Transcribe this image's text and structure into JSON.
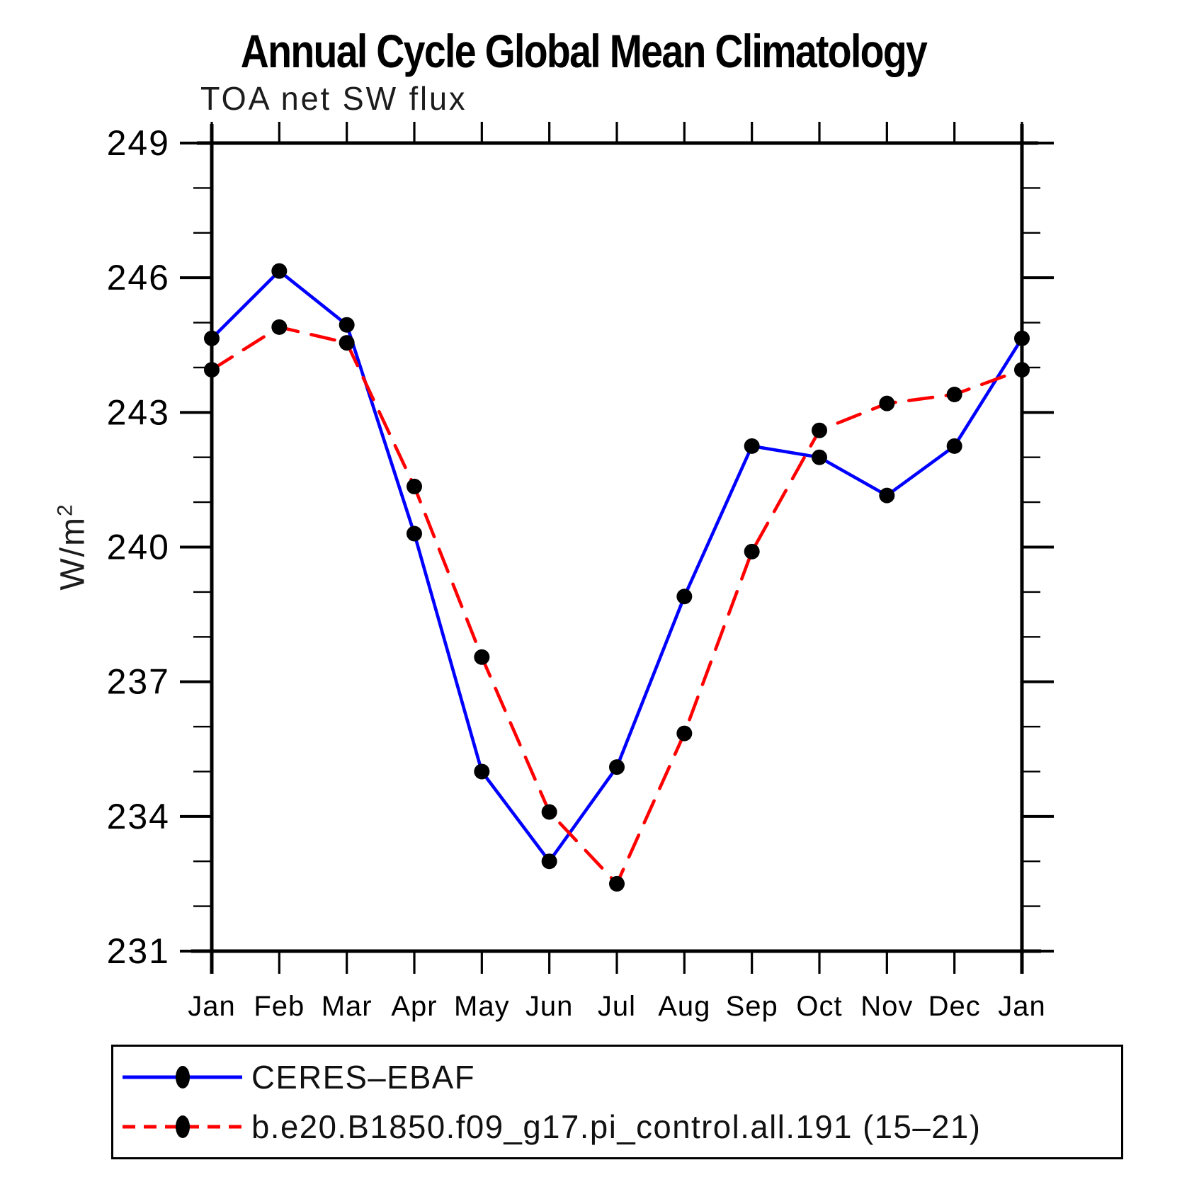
{
  "page": {
    "background": "#ffffff"
  },
  "chart_data": {
    "type": "line",
    "title": "Annual Cycle Global Mean Climatology",
    "subtitle": "TOA net SW flux",
    "ylabel_base": "W/m",
    "ylabel_exponent": "2",
    "categories": [
      "Jan",
      "Feb",
      "Mar",
      "Apr",
      "May",
      "Jun",
      "Jul",
      "Aug",
      "Sep",
      "Oct",
      "Nov",
      "Dec",
      "Jan"
    ],
    "y_axis": {
      "min": 231,
      "max": 249,
      "major_step": 3,
      "minor_step": 1,
      "major_tick_labels": [
        "249",
        "246",
        "243",
        "240",
        "237",
        "234",
        "231"
      ]
    },
    "grid": false,
    "legend_position": "bottom",
    "marker_color": "#000000",
    "axis_color": "#000000",
    "series": [
      {
        "name": "CERES–EBAF",
        "color": "#0000ff",
        "style": "solid",
        "marker": "filled-circle",
        "values": [
          244.65,
          246.15,
          244.95,
          240.3,
          235.0,
          233.0,
          235.1,
          238.9,
          242.25,
          242.0,
          241.15,
          242.25,
          244.65
        ]
      },
      {
        "name": "b.e20.B1850.f09_g17.pi_control.all.191 (15–21)",
        "color": "#ff0000",
        "style": "dashed",
        "marker": "filled-circle",
        "values": [
          243.95,
          244.9,
          244.55,
          241.35,
          237.55,
          234.1,
          232.5,
          235.85,
          239.9,
          242.6,
          243.2,
          243.4,
          243.95
        ]
      }
    ]
  }
}
